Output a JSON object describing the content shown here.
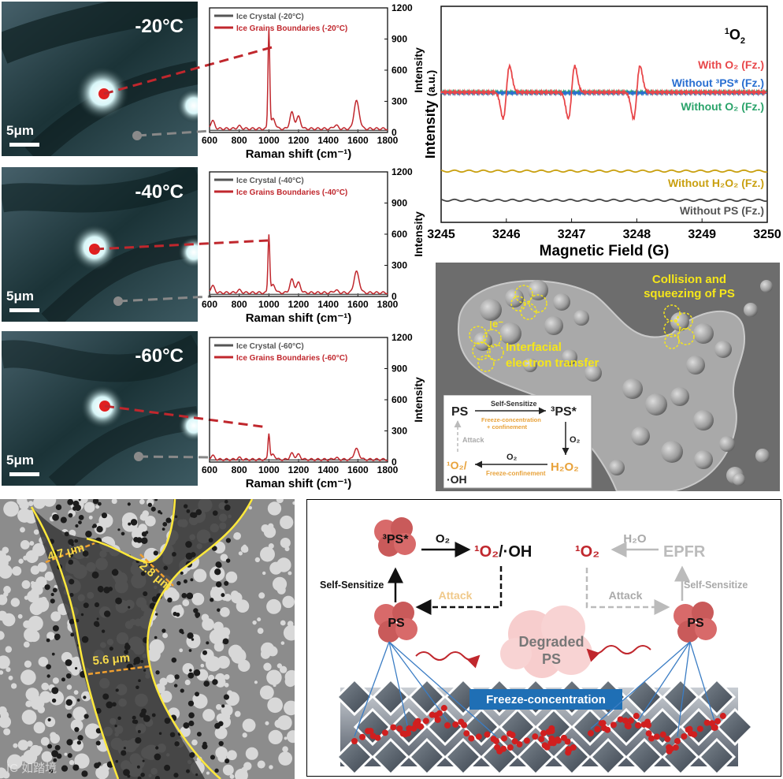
{
  "colors": {
    "ice_crystal": "#555555",
    "ice_boundary": "#c0272d",
    "epr_with_o2": "#e8474a",
    "epr_without_3ps": "#2a6fd1",
    "epr_without_o2": "#2aa36a",
    "epr_without_h2o2": "#c9a010",
    "epr_without_ps": "#444444",
    "freeze_box": "#1f6fb5",
    "annotation_yellow": "#f5e61a",
    "sem_orange": "#e8a23a"
  },
  "micrographs": [
    {
      "temp": "-20°C",
      "scalebar": "5μm"
    },
    {
      "temp": "-40°C",
      "scalebar": "5μm"
    },
    {
      "temp": "-60°C",
      "scalebar": "5μm"
    }
  ],
  "raman": {
    "xlabel": "Raman shift (cm⁻¹)",
    "ylabel": "Intensity",
    "xticks": [
      "600",
      "800",
      "1000",
      "1200",
      "1400",
      "1600",
      "1800"
    ],
    "yticks": [
      "0",
      "300",
      "600",
      "900",
      "1200"
    ],
    "panels": [
      {
        "legend_crystal": "Ice Crystal (-20°C)",
        "legend_boundary": "Ice Grains Boundaries (-20°C)"
      },
      {
        "legend_crystal": "Ice Crystal (-40°C)",
        "legend_boundary": "Ice Grains Boundaries (-40°C)"
      },
      {
        "legend_crystal": "Ice Crystal (-60°C)",
        "legend_boundary": "Ice Grains Boundaries (-60°C)"
      }
    ]
  },
  "chart_data": [
    {
      "type": "line",
      "xlabel": "Raman shift (cm⁻¹)",
      "ylabel": "Intensity",
      "xlim": [
        600,
        1800
      ],
      "ylim": [
        0,
        1200
      ],
      "series": [
        {
          "name": "Ice Crystal (-20°C)",
          "x": [
            600,
            1800
          ],
          "y": [
            20,
            20
          ]
        },
        {
          "name": "Ice Grains Boundaries (-20°C)",
          "x": [
            620,
            800,
            1000,
            1030,
            1155,
            1200,
            1450,
            1585,
            1605
          ],
          "y": [
            110,
            60,
            1000,
            130,
            190,
            150,
            70,
            250,
            150
          ]
        }
      ]
    },
    {
      "type": "line",
      "xlabel": "Raman shift (cm⁻¹)",
      "ylabel": "Intensity",
      "xlim": [
        600,
        1800
      ],
      "ylim": [
        0,
        1200
      ],
      "series": [
        {
          "name": "Ice Crystal (-40°C)",
          "x": [
            600,
            1800
          ],
          "y": [
            20,
            20
          ]
        },
        {
          "name": "Ice Grains Boundaries (-40°C)",
          "x": [
            620,
            800,
            1000,
            1030,
            1155,
            1200,
            1450,
            1585,
            1605
          ],
          "y": [
            100,
            60,
            600,
            110,
            160,
            130,
            60,
            200,
            120
          ]
        }
      ]
    },
    {
      "type": "line",
      "xlabel": "Raman shift (cm⁻¹)",
      "ylabel": "Intensity",
      "xlim": [
        600,
        1800
      ],
      "ylim": [
        0,
        1200
      ],
      "series": [
        {
          "name": "Ice Crystal (-60°C)",
          "x": [
            600,
            1800
          ],
          "y": [
            20,
            20
          ]
        },
        {
          "name": "Ice Grains Boundaries (-60°C)",
          "x": [
            620,
            800,
            1000,
            1030,
            1155,
            1200,
            1450,
            1585,
            1605
          ],
          "y": [
            60,
            40,
            280,
            70,
            80,
            70,
            40,
            110,
            60
          ]
        }
      ]
    },
    {
      "type": "line",
      "title": "¹O₂",
      "xlabel": "Magnetic Field (G)",
      "ylabel": "Intensity (a.u.)",
      "xlim": [
        3245,
        3250
      ],
      "series": [
        {
          "name": "With O₂ (Fz.)",
          "peaks_at": [
            3246.0,
            3247.0,
            3248.0
          ]
        },
        {
          "name": "Without ³PS* (Fz.)"
        },
        {
          "name": "Without O₂ (Fz.)"
        },
        {
          "name": "Without H₂O₂ (Fz.)"
        },
        {
          "name": "Without PS (Fz.)"
        }
      ]
    }
  ],
  "epr": {
    "title_sup": "1",
    "title_main": "O",
    "title_sub": "2",
    "xlabel": "Magnetic Field (G)",
    "ylabel_main": "Intensity",
    "ylabel_unit": "(a.u.)",
    "xticks": [
      "3245",
      "3246",
      "3247",
      "3248",
      "3249",
      "3250"
    ],
    "legend": [
      "With O₂ (Fz.)",
      "Without ³PS* (Fz.)",
      "Without O₂ (Fz.)",
      "Without H₂O₂ (Fz.)",
      "Without PS (Fz.)"
    ]
  },
  "sem": {
    "collision": "Collision and squeezing of PS",
    "interfacial": "Interfacial electron transfer",
    "electron": "e⁻",
    "inset": {
      "ps": "PS",
      "self_sensitize": "Self-Sensitize",
      "freeze_conc": "Freeze-concentration + confinement",
      "triplet_ps": "³PS*",
      "o2_a": "O₂",
      "h2o2": "H₂O₂",
      "o2_b": "O₂",
      "freeze_conf": "Freeze-confinement",
      "singlet": "¹O₂/·OH",
      "attack": "Attack"
    }
  },
  "tem": {
    "widths": [
      "4.7 μm",
      "2.8 μm",
      "5.6 μm"
    ],
    "watermark": "IC 如踏境"
  },
  "mech": {
    "triplet_ps": "³PS*",
    "o2": "O₂",
    "singlet_oh": "¹O₂/·OH",
    "self_sensitize": "Self-Sensitize",
    "attack_left": "Attack",
    "ps_left": "PS",
    "singlet_right": "¹O₂",
    "h2o": "H₂O",
    "epfr": "EPFR",
    "attack_right": "Attack",
    "self_sensitize_right": "Self-Sensitize",
    "ps_right": "PS",
    "degraded": "Degraded PS",
    "freeze_box": "Freeze-concentration"
  }
}
